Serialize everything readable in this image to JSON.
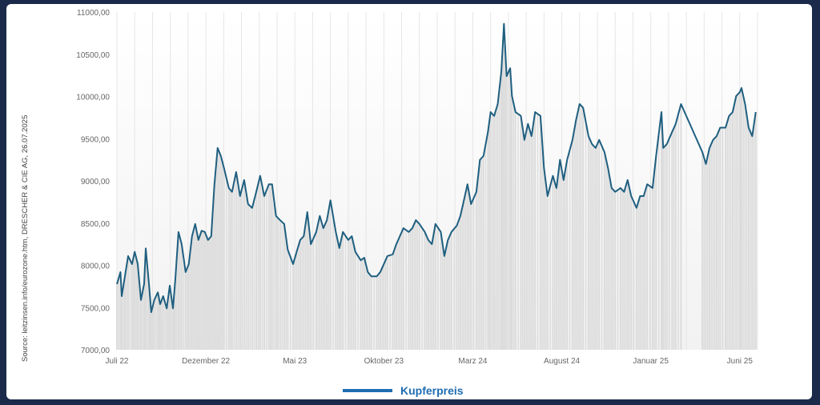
{
  "source": "Source: leitzinsen.info/eurozone.htm, DRESCHER & CIE AG, 26.07.2025",
  "chart_data": {
    "type": "line",
    "title": "",
    "xlabel": "",
    "ylabel": "",
    "x_unit": "months since Juli 22",
    "xlim": [
      0,
      36
    ],
    "ylim": [
      7000,
      11000
    ],
    "yticks": [
      7000,
      7500,
      8000,
      8500,
      9000,
      9500,
      10000,
      10500,
      11000
    ],
    "ytick_labels": [
      "7000,00",
      "7500,00",
      "8000,00",
      "8500,00",
      "9000,00",
      "9500,00",
      "10000,00",
      "10500,00",
      "11000,00"
    ],
    "xticks": [
      0,
      5,
      10,
      15,
      20,
      25,
      30,
      35
    ],
    "xtick_labels": [
      "Juli 22",
      "Dezember 22",
      "Mai 23",
      "Oktober 23",
      "Marz 24",
      "August 24",
      "Januar 25",
      "Juni 25"
    ],
    "legend": {
      "position": "bottom",
      "entries": [
        "Kupferpreis"
      ]
    },
    "colors": {
      "line": "#1f5f80",
      "legend": "#1f6db3",
      "bars": "#dcdcdc"
    },
    "series": [
      {
        "name": "Kupferpreis",
        "points": [
          [
            0,
            7777
          ],
          [
            0.2,
            7920
          ],
          [
            0.27,
            7635
          ],
          [
            0.45,
            7870
          ],
          [
            0.63,
            8110
          ],
          [
            0.85,
            8015
          ],
          [
            1.0,
            8160
          ],
          [
            1.17,
            8015
          ],
          [
            1.35,
            7590
          ],
          [
            1.53,
            7780
          ],
          [
            1.62,
            8200
          ],
          [
            1.8,
            7780
          ],
          [
            1.93,
            7445
          ],
          [
            2.1,
            7590
          ],
          [
            2.3,
            7680
          ],
          [
            2.43,
            7540
          ],
          [
            2.6,
            7635
          ],
          [
            2.8,
            7490
          ],
          [
            2.97,
            7760
          ],
          [
            3.15,
            7490
          ],
          [
            3.28,
            7825
          ],
          [
            3.46,
            8395
          ],
          [
            3.64,
            8250
          ],
          [
            3.86,
            7920
          ],
          [
            4.04,
            8015
          ],
          [
            4.22,
            8345
          ],
          [
            4.4,
            8490
          ],
          [
            4.58,
            8300
          ],
          [
            4.76,
            8410
          ],
          [
            4.94,
            8395
          ],
          [
            5.12,
            8300
          ],
          [
            5.3,
            8345
          ],
          [
            5.48,
            8960
          ],
          [
            5.66,
            9390
          ],
          [
            5.84,
            9295
          ],
          [
            6.02,
            9150
          ],
          [
            6.29,
            8915
          ],
          [
            6.47,
            8870
          ],
          [
            6.7,
            9105
          ],
          [
            6.92,
            8820
          ],
          [
            7.15,
            9010
          ],
          [
            7.37,
            8725
          ],
          [
            7.6,
            8680
          ],
          [
            7.83,
            8870
          ],
          [
            8.05,
            9060
          ],
          [
            8.28,
            8820
          ],
          [
            8.54,
            8960
          ],
          [
            8.72,
            8960
          ],
          [
            8.94,
            8585
          ],
          [
            9.17,
            8535
          ],
          [
            9.4,
            8490
          ],
          [
            9.6,
            8185
          ],
          [
            9.9,
            8015
          ],
          [
            10.1,
            8160
          ],
          [
            10.3,
            8300
          ],
          [
            10.5,
            8345
          ],
          [
            10.7,
            8630
          ],
          [
            10.9,
            8250
          ],
          [
            11.2,
            8395
          ],
          [
            11.4,
            8585
          ],
          [
            11.6,
            8440
          ],
          [
            11.8,
            8535
          ],
          [
            12.0,
            8770
          ],
          [
            12.3,
            8395
          ],
          [
            12.5,
            8205
          ],
          [
            12.7,
            8395
          ],
          [
            13.0,
            8300
          ],
          [
            13.2,
            8345
          ],
          [
            13.4,
            8160
          ],
          [
            13.7,
            8060
          ],
          [
            13.9,
            8090
          ],
          [
            14.1,
            7920
          ],
          [
            14.3,
            7870
          ],
          [
            14.6,
            7870
          ],
          [
            14.8,
            7920
          ],
          [
            15.0,
            8015
          ],
          [
            15.2,
            8110
          ],
          [
            15.5,
            8130
          ],
          [
            15.7,
            8250
          ],
          [
            15.9,
            8345
          ],
          [
            16.1,
            8440
          ],
          [
            16.4,
            8395
          ],
          [
            16.6,
            8440
          ],
          [
            16.8,
            8535
          ],
          [
            17.0,
            8490
          ],
          [
            17.3,
            8395
          ],
          [
            17.5,
            8300
          ],
          [
            17.7,
            8250
          ],
          [
            17.9,
            8490
          ],
          [
            18.2,
            8395
          ],
          [
            18.4,
            8110
          ],
          [
            18.6,
            8300
          ],
          [
            18.8,
            8395
          ],
          [
            19.1,
            8470
          ],
          [
            19.3,
            8585
          ],
          [
            19.5,
            8770
          ],
          [
            19.7,
            8960
          ],
          [
            19.9,
            8725
          ],
          [
            20.2,
            8870
          ],
          [
            20.4,
            9250
          ],
          [
            20.6,
            9295
          ],
          [
            20.85,
            9580
          ],
          [
            21.0,
            9815
          ],
          [
            21.2,
            9770
          ],
          [
            21.4,
            9910
          ],
          [
            21.6,
            10290
          ],
          [
            21.75,
            10860
          ],
          [
            21.9,
            10240
          ],
          [
            22.1,
            10335
          ],
          [
            22.2,
            10005
          ],
          [
            22.4,
            9815
          ],
          [
            22.7,
            9770
          ],
          [
            22.9,
            9485
          ],
          [
            23.1,
            9675
          ],
          [
            23.3,
            9530
          ],
          [
            23.5,
            9815
          ],
          [
            23.8,
            9770
          ],
          [
            24.0,
            9150
          ],
          [
            24.2,
            8820
          ],
          [
            24.5,
            9060
          ],
          [
            24.7,
            8915
          ],
          [
            24.9,
            9250
          ],
          [
            25.1,
            9010
          ],
          [
            25.3,
            9250
          ],
          [
            25.6,
            9485
          ],
          [
            25.8,
            9720
          ],
          [
            26.0,
            9910
          ],
          [
            26.2,
            9865
          ],
          [
            26.5,
            9530
          ],
          [
            26.7,
            9435
          ],
          [
            26.9,
            9390
          ],
          [
            27.1,
            9485
          ],
          [
            27.4,
            9340
          ],
          [
            27.6,
            9150
          ],
          [
            27.8,
            8915
          ],
          [
            28.0,
            8870
          ],
          [
            28.3,
            8915
          ],
          [
            28.5,
            8870
          ],
          [
            28.7,
            9010
          ],
          [
            28.9,
            8820
          ],
          [
            29.2,
            8680
          ],
          [
            29.4,
            8820
          ],
          [
            29.6,
            8820
          ],
          [
            29.8,
            8960
          ],
          [
            30.1,
            8915
          ],
          [
            30.3,
            9295
          ],
          [
            30.6,
            9815
          ],
          [
            30.7,
            9390
          ],
          [
            30.9,
            9435
          ],
          [
            31.2,
            9580
          ],
          [
            31.4,
            9675
          ],
          [
            31.7,
            9910
          ],
          [
            32.9,
            9340
          ],
          [
            33.1,
            9200
          ],
          [
            33.3,
            9390
          ],
          [
            33.5,
            9485
          ],
          [
            33.7,
            9530
          ],
          [
            33.9,
            9630
          ],
          [
            34.2,
            9630
          ],
          [
            34.4,
            9770
          ],
          [
            34.6,
            9815
          ],
          [
            34.8,
            10005
          ],
          [
            35.0,
            10050
          ],
          [
            35.1,
            10100
          ],
          [
            35.3,
            9910
          ],
          [
            35.5,
            9630
          ],
          [
            35.7,
            9530
          ],
          [
            35.9,
            9815
          ]
        ]
      }
    ]
  }
}
